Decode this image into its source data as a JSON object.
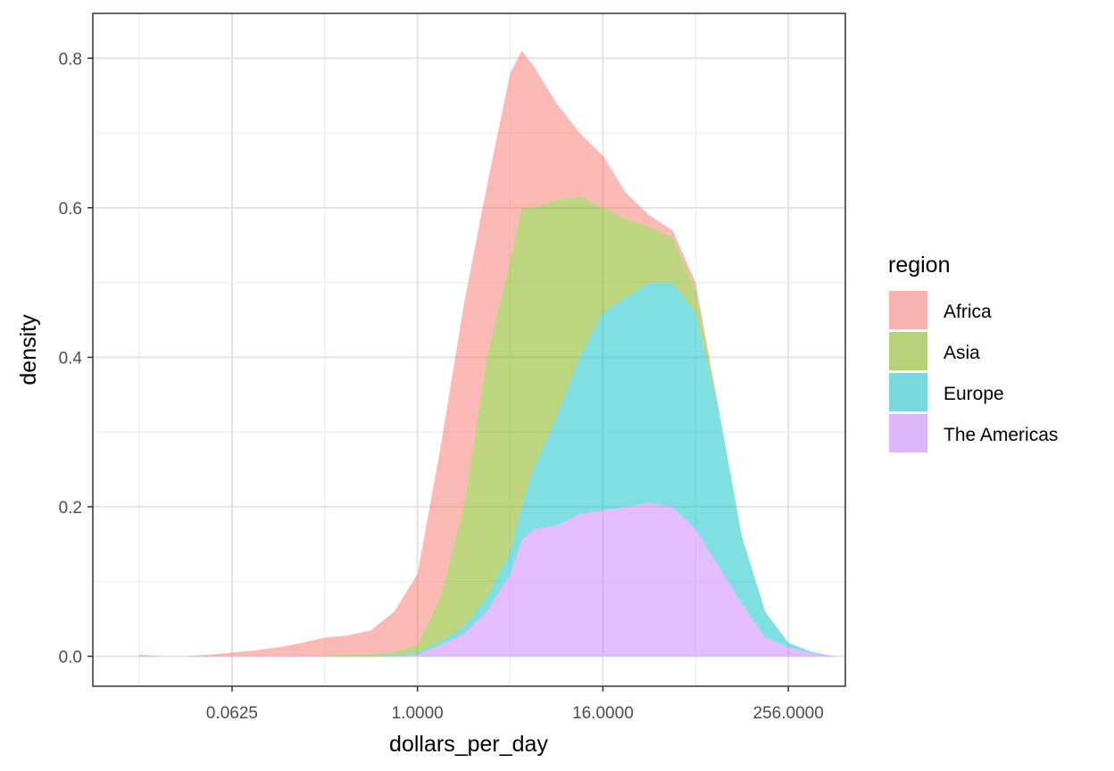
{
  "chart_data": {
    "type": "area",
    "subtype": "stacked-density",
    "title": "",
    "xlabel": "dollars_per_day",
    "ylabel": "density",
    "x_scale": "log2",
    "xlim": [
      0.0078,
      600
    ],
    "ylim": [
      -0.04,
      0.86
    ],
    "x_ticks": [
      0.0625,
      1,
      16,
      256
    ],
    "x_tick_labels": [
      "0.0625",
      "1.0000",
      "16.0000",
      "256.0000"
    ],
    "y_ticks": [
      0,
      0.2,
      0.4,
      0.6,
      0.8
    ],
    "y_tick_labels": [
      "0.0",
      "0.2",
      "0.4",
      "0.6",
      "0.8"
    ],
    "grid": true,
    "legend": {
      "title": "region",
      "position": "right"
    },
    "x": [
      0.0156,
      0.0221,
      0.03125,
      0.0442,
      0.0625,
      0.0884,
      0.125,
      0.177,
      0.25,
      0.354,
      0.5,
      0.707,
      1,
      1.414,
      2,
      2.83,
      4,
      4.76,
      5.66,
      8,
      11.3,
      16,
      22.6,
      32,
      45.3,
      64,
      90.5,
      128,
      181,
      256,
      362,
      512
    ],
    "series": [
      {
        "name": "Africa",
        "color": "#F8766D",
        "top": [
          0.002,
          0.0,
          0.0,
          0.002,
          0.005,
          0.008,
          0.012,
          0.018,
          0.025,
          0.028,
          0.035,
          0.06,
          0.11,
          0.28,
          0.47,
          0.63,
          0.78,
          0.81,
          0.79,
          0.74,
          0.7,
          0.67,
          0.62,
          0.59,
          0.57,
          0.5,
          0.33,
          0.16,
          0.06,
          0.018,
          0.006,
          0.0
        ]
      },
      {
        "name": "Asia",
        "color": "#7CAE00",
        "top": [
          0.0,
          0.0,
          0.0,
          0.0,
          0.0,
          0.0,
          0.0,
          0.0,
          0.001,
          0.002,
          0.003,
          0.006,
          0.015,
          0.08,
          0.2,
          0.4,
          0.53,
          0.6,
          0.6,
          0.61,
          0.615,
          0.6,
          0.585,
          0.575,
          0.56,
          0.49,
          0.33,
          0.16,
          0.06,
          0.018,
          0.006,
          0.0
        ]
      },
      {
        "name": "Europe",
        "color": "#00BFC4",
        "top": [
          0.0,
          0.0,
          0.0,
          0.0,
          0.0,
          0.0,
          0.0,
          0.0,
          0.0,
          0.0,
          0.0,
          0.002,
          0.005,
          0.02,
          0.04,
          0.08,
          0.14,
          0.2,
          0.25,
          0.32,
          0.4,
          0.46,
          0.48,
          0.5,
          0.5,
          0.46,
          0.33,
          0.16,
          0.06,
          0.018,
          0.006,
          0.0
        ]
      },
      {
        "name": "The Americas",
        "color": "#C77CFF",
        "top": [
          0.0,
          0.0,
          0.0,
          0.0,
          0.0,
          0.0,
          0.0,
          0.0,
          0.0,
          0.0,
          0.0,
          0.0,
          0.002,
          0.015,
          0.03,
          0.06,
          0.11,
          0.155,
          0.17,
          0.175,
          0.19,
          0.195,
          0.2,
          0.205,
          0.2,
          0.17,
          0.12,
          0.07,
          0.025,
          0.012,
          0.004,
          0.0
        ]
      }
    ]
  }
}
